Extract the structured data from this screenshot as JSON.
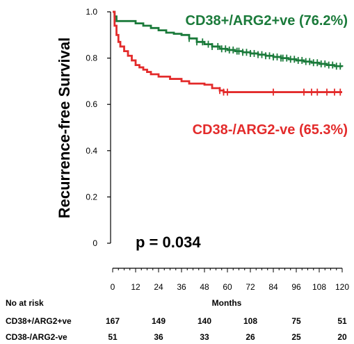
{
  "chart_data": {
    "type": "line",
    "subtype": "kaplan-meier step",
    "title": "",
    "xlabel": "Months",
    "ylabel": "Recurrence-free Survival",
    "xlim": [
      0,
      120
    ],
    "ylim": [
      0,
      1.0
    ],
    "x_ticks": [
      "0",
      "12",
      "24",
      "36",
      "48",
      "60",
      "72",
      "84",
      "96",
      "108",
      "120"
    ],
    "y_ticks": [
      "0",
      "0.2",
      "0.4",
      "0.6",
      "0.8",
      "1.0"
    ],
    "grid": false,
    "annotation": "p = 0.034",
    "series": [
      {
        "name": "CD38+/ARG2+ve (76.2%)",
        "color": "#1a7a3a",
        "points": [
          [
            0,
            1.0
          ],
          [
            1,
            0.98
          ],
          [
            2,
            0.96
          ],
          [
            8,
            0.96
          ],
          [
            12,
            0.95
          ],
          [
            16,
            0.94
          ],
          [
            20,
            0.93
          ],
          [
            24,
            0.92
          ],
          [
            28,
            0.91
          ],
          [
            32,
            0.905
          ],
          [
            36,
            0.9
          ],
          [
            40,
            0.885
          ],
          [
            44,
            0.87
          ],
          [
            48,
            0.86
          ],
          [
            52,
            0.85
          ],
          [
            56,
            0.84
          ],
          [
            60,
            0.835
          ],
          [
            64,
            0.83
          ],
          [
            68,
            0.825
          ],
          [
            72,
            0.82
          ],
          [
            76,
            0.815
          ],
          [
            80,
            0.81
          ],
          [
            84,
            0.805
          ],
          [
            88,
            0.8
          ],
          [
            92,
            0.795
          ],
          [
            96,
            0.79
          ],
          [
            100,
            0.785
          ],
          [
            104,
            0.78
          ],
          [
            108,
            0.775
          ],
          [
            112,
            0.77
          ],
          [
            116,
            0.765
          ],
          [
            120,
            0.762
          ]
        ],
        "censor_x": [
          40,
          44,
          47,
          50,
          52,
          55,
          57,
          59,
          61,
          63,
          65,
          66,
          68,
          70,
          72,
          74,
          76,
          78,
          80,
          82,
          84,
          86,
          88,
          89,
          91,
          93,
          95,
          97,
          99,
          101,
          103,
          105,
          107,
          109,
          111,
          113,
          115,
          117,
          119
        ]
      },
      {
        "name": "CD38-/ARG2-ve (65.3%)",
        "color": "#e32b2b",
        "points": [
          [
            0,
            1.0
          ],
          [
            1,
            0.94
          ],
          [
            2,
            0.9
          ],
          [
            3,
            0.87
          ],
          [
            4,
            0.85
          ],
          [
            6,
            0.83
          ],
          [
            8,
            0.81
          ],
          [
            10,
            0.79
          ],
          [
            12,
            0.77
          ],
          [
            14,
            0.76
          ],
          [
            16,
            0.75
          ],
          [
            18,
            0.74
          ],
          [
            20,
            0.73
          ],
          [
            24,
            0.72
          ],
          [
            30,
            0.71
          ],
          [
            36,
            0.7
          ],
          [
            40,
            0.69
          ],
          [
            48,
            0.685
          ],
          [
            52,
            0.67
          ],
          [
            56,
            0.66
          ],
          [
            58,
            0.653
          ],
          [
            120,
            0.653
          ]
        ],
        "censor_x": [
          56,
          58,
          60,
          84,
          100,
          104,
          107,
          112,
          116,
          119
        ]
      }
    ],
    "risk_table": {
      "header": "No at risk",
      "x": [
        0,
        24,
        48,
        72,
        96,
        120
      ],
      "rows": [
        {
          "name": "CD38+/ARG2+ve",
          "values": [
            167,
            149,
            140,
            108,
            75,
            51
          ]
        },
        {
          "name": "CD38-/ARG2-ve",
          "values": [
            51,
            36,
            33,
            26,
            25,
            20
          ]
        }
      ]
    }
  }
}
